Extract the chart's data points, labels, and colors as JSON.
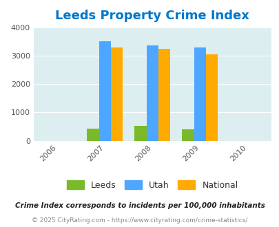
{
  "title": "Leeds Property Crime Index",
  "years": [
    2006,
    2007,
    2008,
    2009,
    2010
  ],
  "bar_years": [
    2007,
    2008,
    2009
  ],
  "leeds": [
    430,
    520,
    410
  ],
  "utah": [
    3500,
    3370,
    3290
  ],
  "national": [
    3280,
    3230,
    3040
  ],
  "color_leeds": "#7aba2a",
  "color_utah": "#4da6ff",
  "color_national": "#ffaa00",
  "title_color": "#0077cc",
  "bg_color": "#ddeef0",
  "ylim": [
    0,
    4000
  ],
  "ylabel_ticks": [
    0,
    1000,
    2000,
    3000,
    4000
  ],
  "subtitle": "Crime Index corresponds to incidents per 100,000 inhabitants",
  "copyright": "© 2025 CityRating.com - https://www.cityrating.com/crime-statistics/",
  "legend_labels": [
    "Leeds",
    "Utah",
    "National"
  ]
}
